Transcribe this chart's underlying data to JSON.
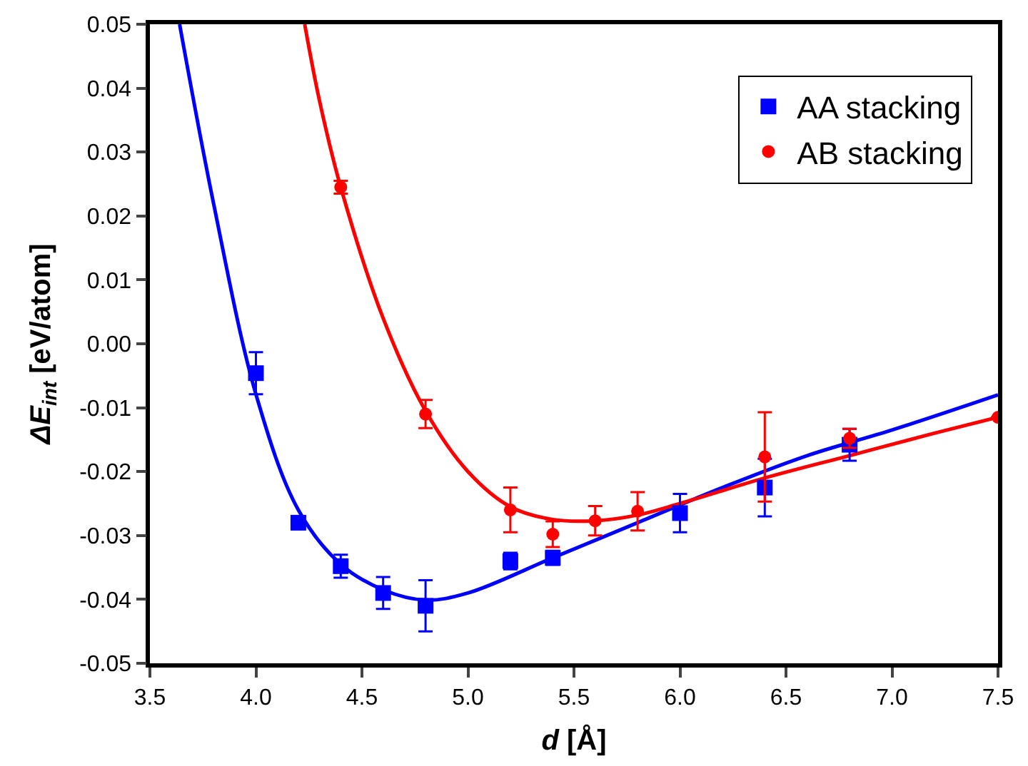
{
  "chart_data": {
    "type": "scatter",
    "xlabel": "d [Å]",
    "ylabel": "ΔE$_{int}$ [eV/atom]",
    "xlim": [
      3.5,
      7.5
    ],
    "xticks": [
      3.5,
      {
        "value": 4,
        "label": "4.0"
      },
      4.5,
      {
        "value": 5,
        "label": "5.0"
      },
      5.5,
      {
        "value": 6,
        "label": "6.0"
      },
      6.5,
      {
        "value": 7,
        "label": "7.0"
      },
      7.5
    ],
    "ylim": [
      -0.05,
      0.05
    ],
    "yticks": [
      -0.05,
      -0.04,
      -0.03,
      -0.02,
      -0.01,
      {
        "value": 0,
        "label": "0.00"
      },
      0.01,
      0.02,
      0.03,
      0.04,
      0.05
    ],
    "legend": "top right",
    "grid": false,
    "series": [
      {
        "name": "AA stacking",
        "marker": "square",
        "color": "#0000ff",
        "x": [
          4.0,
          4.2,
          4.4,
          4.6,
          4.8,
          5.2,
          5.4,
          6.0,
          6.4,
          6.8
        ],
        "values": [
          -0.0046,
          -0.028,
          -0.0348,
          -0.039,
          -0.041,
          -0.034,
          -0.0335,
          -0.0265,
          -0.0225,
          -0.0158
        ],
        "errors": [
          0.0033,
          0.001,
          0.0018,
          0.0025,
          0.004,
          0.0013,
          0.0011,
          0.003,
          0.0045,
          0.0025
        ]
      },
      {
        "name": "AB stacking",
        "marker": "circle",
        "color": "#ff0000",
        "x": [
          4.4,
          4.8,
          5.2,
          5.4,
          5.6,
          5.8,
          6.4,
          6.8,
          7.5
        ],
        "values": [
          0.0245,
          -0.011,
          -0.026,
          -0.0298,
          -0.0277,
          -0.0262,
          -0.0177,
          -0.0148,
          -0.0115
        ],
        "errors": [
          0.001,
          0.0022,
          0.0035,
          0.002,
          0.0023,
          0.003,
          0.007,
          0.0015,
          null
        ]
      },
      {
        "type": "line",
        "color": "#0000ff",
        "x": [
          3.64,
          3.8,
          4.0,
          4.2,
          4.4,
          4.6,
          4.8,
          5.0,
          5.4,
          5.8,
          6.2,
          6.6,
          7.0,
          7.5
        ],
        "values": [
          0.05,
          0.022,
          -0.0079,
          -0.026,
          -0.0345,
          -0.0385,
          -0.0401,
          -0.039,
          -0.0335,
          -0.028,
          -0.0225,
          -0.0175,
          -0.0135,
          -0.008
        ]
      },
      {
        "type": "line",
        "color": "#ff0000",
        "x": [
          4.23,
          4.3,
          4.4,
          4.6,
          4.8,
          5.0,
          5.2,
          5.4,
          5.6,
          5.8,
          6.0,
          6.4,
          6.8,
          7.2,
          7.5
        ],
        "values": [
          0.05,
          0.038,
          0.0245,
          0.004,
          -0.0105,
          -0.02,
          -0.0255,
          -0.0275,
          -0.0277,
          -0.0268,
          -0.025,
          -0.021,
          -0.0175,
          -0.014,
          -0.0115
        ]
      }
    ]
  }
}
